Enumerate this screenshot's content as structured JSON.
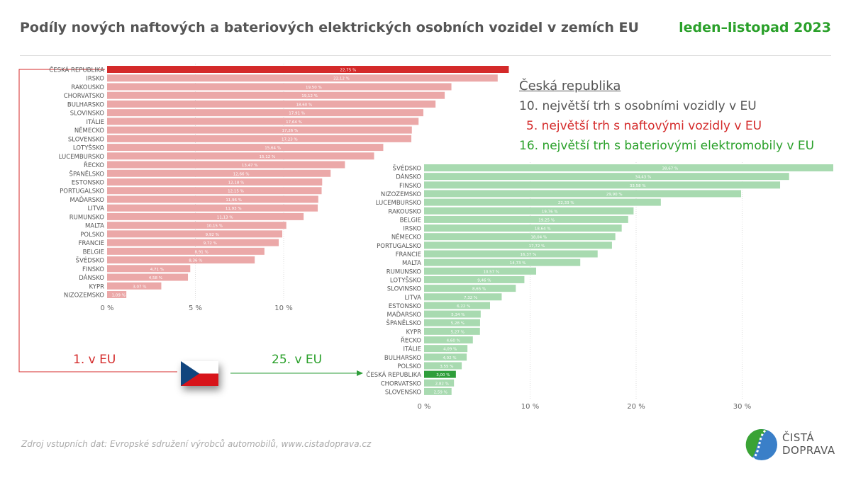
{
  "header": {
    "title": "Podíly nových naftových a bateriových elektrických osobních vozidel v zemích EU",
    "period": "leden–listopad 2023"
  },
  "info": {
    "heading": "Česká republika",
    "line1": "10. největší trh s osobními vozidly v EU",
    "line2": "5. největší trh s naftovými vozidly v EU",
    "line3": "16. největší trh s bateriovými elektromobily v EU"
  },
  "annotations": {
    "diesel_rank": "1. v EU",
    "bev_rank": "25. v EU"
  },
  "footer": {
    "source": "Zdroj vstupních dat: Evropské sdružení výrobců automobilů, www.cistadoprava.cz",
    "logo_line1": "ČISTÁ",
    "logo_line2": "DOPRAVA"
  },
  "colors": {
    "diesel": "#eba8a8",
    "diesel_highlight": "#d42a2a",
    "bev": "#a8dab0",
    "bev_highlight": "#2e9e3a"
  },
  "chart_data": [
    {
      "type": "bar",
      "orientation": "horizontal",
      "title": "Podíl naftových vozidel",
      "highlight": "ČESKÁ REPUBLIKA",
      "xlim": [
        0,
        23
      ],
      "xticks": [
        0,
        5,
        10
      ],
      "xtick_labels": [
        "0 %",
        "5 %",
        "10 %"
      ],
      "categories": [
        "ČESKÁ REPUBLIKA",
        "IRSKO",
        "RAKOUSKO",
        "CHORVATSKO",
        "BULHARSKO",
        "SLOVINSKO",
        "ITÁLIE",
        "NĚMECKO",
        "SLOVENSKO",
        "LOTYŠSKO",
        "LUCEMBURSKO",
        "ŘECKO",
        "ŠPANĚLSKO",
        "ESTONSKO",
        "PORTUGALSKO",
        "MAĎARSKO",
        "LITVA",
        "RUMUNSKO",
        "MALTA",
        "POLSKO",
        "FRANCIE",
        "BELGIE",
        "ŠVÉDSKO",
        "FINSKO",
        "DÁNSKO",
        "KYPR",
        "NIZOZEMSKO"
      ],
      "values": [
        22.75,
        22.12,
        19.5,
        19.12,
        18.6,
        17.91,
        17.64,
        17.26,
        17.23,
        15.64,
        15.12,
        13.47,
        12.66,
        12.18,
        12.15,
        11.96,
        11.93,
        11.13,
        10.15,
        9.92,
        9.72,
        8.91,
        8.36,
        4.71,
        4.58,
        3.07,
        1.09
      ]
    },
    {
      "type": "bar",
      "orientation": "horizontal",
      "title": "Podíl bateriových elektromobilů",
      "highlight": "ČESKÁ REPUBLIKA",
      "xlim": [
        0,
        38.5
      ],
      "xticks": [
        0,
        10,
        20,
        30
      ],
      "xtick_labels": [
        "0 %",
        "10 %",
        "20 %",
        "30 %"
      ],
      "categories": [
        "ŠVÉDSKO",
        "DÁNSKO",
        "FINSKO",
        "NIZOZEMSKO",
        "LUCEMBURSKO",
        "RAKOUSKO",
        "BELGIE",
        "IRSKO",
        "NĚMECKO",
        "PORTUGALSKO",
        "FRANCIE",
        "MALTA",
        "RUMUNSKO",
        "LOTYŠSKO",
        "SLOVINSKO",
        "LITVA",
        "ESTONSKO",
        "MAĎARSKO",
        "ŠPANĚLSKO",
        "KYPR",
        "ŘECKO",
        "ITÁLIE",
        "BULHARSKO",
        "POLSKO",
        "ČESKÁ REPUBLIKA",
        "CHORVATSKO",
        "SLOVENSKO"
      ],
      "values": [
        38.67,
        34.43,
        33.58,
        29.9,
        22.33,
        19.76,
        19.25,
        18.64,
        18.04,
        17.72,
        16.37,
        14.73,
        10.57,
        9.46,
        8.65,
        7.32,
        6.22,
        5.34,
        5.28,
        5.27,
        4.6,
        4.09,
        4.02,
        3.55,
        3.0,
        2.82,
        2.59
      ]
    }
  ]
}
